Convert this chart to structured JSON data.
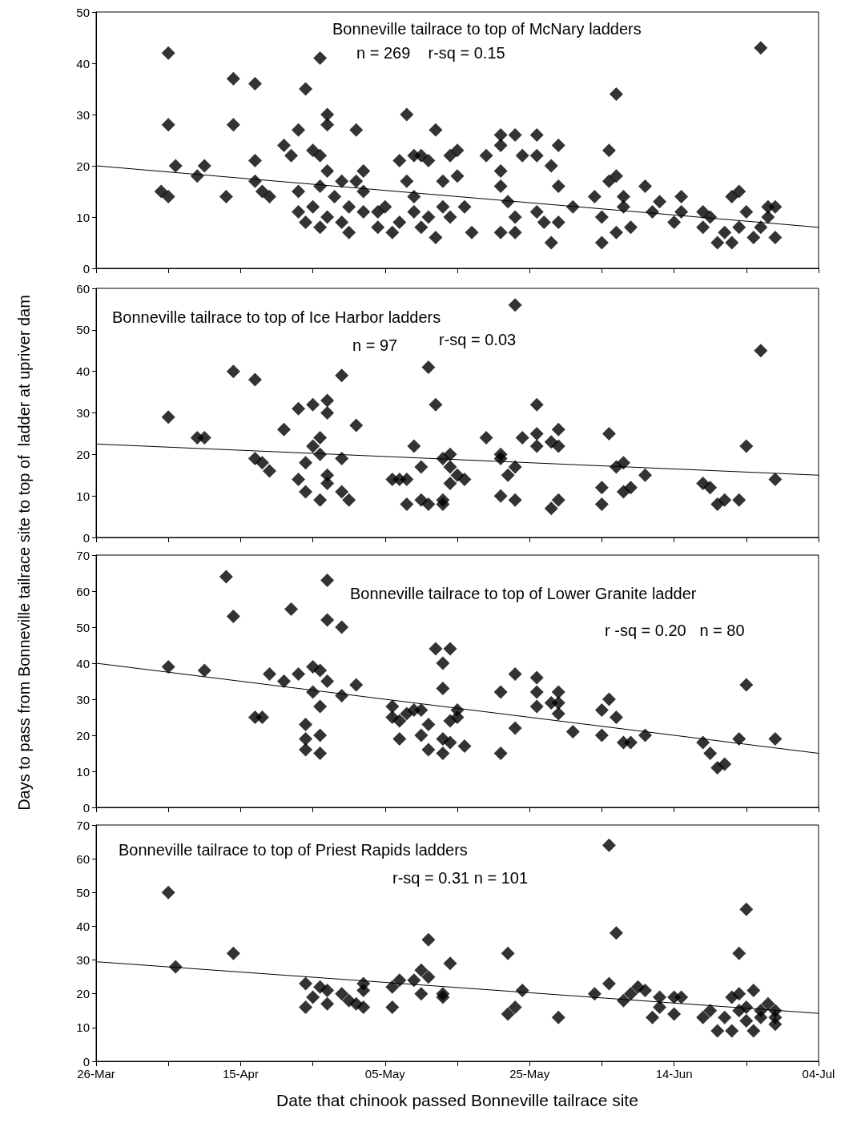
{
  "chart_data": [
    {
      "type": "scatter",
      "title": "Bonneville tailrace to top of McNary ladders",
      "ylabel": "Days to pass from Bonneville tailrace site to top of  ladder at upriver dam",
      "annotations": [
        "n = 269    r-sq = 0.15"
      ],
      "marker": "diamond",
      "tick_labels": "y",
      "xlim": [
        "--03-26",
        "--07-04"
      ],
      "ylim": [
        0,
        50
      ],
      "yticks": [
        0,
        10,
        20,
        30,
        40,
        50
      ],
      "xticks": [
        {
          "value": "--03-26",
          "label": "26-Mar"
        },
        {
          "value": "--04-05",
          "label": null
        },
        {
          "value": "--04-15",
          "label": "15-Apr"
        },
        {
          "value": "--04-25",
          "label": null
        },
        {
          "value": "--05-05",
          "label": "05-May"
        },
        {
          "value": "--05-15",
          "label": null
        },
        {
          "value": "--05-25",
          "label": "25-May"
        },
        {
          "value": "--06-04",
          "label": null
        },
        {
          "value": "--06-14",
          "label": "14-Jun"
        },
        {
          "value": "--06-24",
          "label": null
        },
        {
          "value": "--07-04",
          "label": "04-Jul"
        }
      ],
      "series": [
        {
          "color": "#000000",
          "x": [
            "--04-05",
            "--04-05",
            "--04-04",
            "--04-05",
            "--04-06",
            "--04-09",
            "--04-10",
            "--04-13",
            "--04-14",
            "--04-14",
            "--04-17",
            "--04-17",
            "--04-17",
            "--04-18",
            "--04-19",
            "--04-21",
            "--04-22",
            "--04-23",
            "--04-24",
            "--04-23",
            "--04-23",
            "--04-24",
            "--04-25",
            "--04-26",
            "--04-26",
            "--04-26",
            "--04-27",
            "--04-27",
            "--04-25",
            "--04-26",
            "--04-27",
            "--04-27",
            "--04-28",
            "--04-29",
            "--04-29",
            "--04-30",
            "--04-30",
            "--05-01",
            "--05-01",
            "--05-02",
            "--05-02",
            "--05-02",
            "--05-07",
            "--05-08",
            "--05-09",
            "--05-10",
            "--05-11",
            "--05-12",
            "--05-04",
            "--05-04",
            "--05-05",
            "--05-06",
            "--05-07",
            "--05-08",
            "--05-09",
            "--05-09",
            "--05-10",
            "--05-11",
            "--05-12",
            "--05-13",
            "--05-13",
            "--05-14",
            "--05-14",
            "--05-15",
            "--05-15",
            "--05-16",
            "--05-17",
            "--05-19",
            "--05-21",
            "--05-21",
            "--05-23",
            "--05-21",
            "--05-21",
            "--05-21",
            "--05-22",
            "--05-23",
            "--05-23",
            "--05-24",
            "--05-26",
            "--05-26",
            "--05-26",
            "--05-27",
            "--05-28",
            "--05-28",
            "--05-29",
            "--05-29",
            "--05-29",
            "--05-31",
            "--06-03",
            "--06-04",
            "--06-04",
            "--06-05",
            "--06-05",
            "--06-06",
            "--06-06",
            "--06-06",
            "--06-07",
            "--06-07",
            "--06-08",
            "--06-10",
            "--06-11",
            "--06-12",
            "--06-14",
            "--06-15",
            "--06-15",
            "--06-18",
            "--06-18",
            "--06-20",
            "--06-19",
            "--06-21",
            "--06-22",
            "--06-22",
            "--06-23",
            "--06-23",
            "--06-24",
            "--06-25",
            "--06-26",
            "--06-26",
            "--06-27",
            "--06-27",
            "--06-28",
            "--06-28"
          ],
          "values": [
            42,
            28,
            15,
            14,
            20,
            18,
            20,
            14,
            37,
            28,
            36,
            21,
            17,
            15,
            14,
            24,
            22,
            27,
            35,
            15,
            11,
            9,
            23,
            22,
            41,
            8,
            30,
            28,
            12,
            16,
            19,
            10,
            14,
            17,
            9,
            12,
            7,
            27,
            17,
            19,
            11,
            15,
            21,
            30,
            22,
            22,
            21,
            27,
            11,
            8,
            12,
            7,
            9,
            17,
            11,
            14,
            8,
            10,
            6,
            12,
            17,
            22,
            10,
            18,
            23,
            12,
            7,
            22,
            24,
            26,
            26,
            19,
            16,
            7,
            13,
            7,
            10,
            22,
            26,
            22,
            11,
            9,
            20,
            5,
            24,
            16,
            9,
            12,
            14,
            5,
            10,
            23,
            17,
            34,
            18,
            7,
            14,
            12,
            8,
            16,
            11,
            13,
            9,
            14,
            11,
            11,
            8,
            5,
            10,
            7,
            5,
            14,
            15,
            8,
            11,
            6,
            43,
            8,
            10,
            12,
            6,
            12
          ]
        },
        {
          "type": "line",
          "marker": "none",
          "color": "#000000",
          "x": [
            "--03-26",
            "--07-04"
          ],
          "values": [
            20,
            8
          ]
        }
      ]
    },
    {
      "type": "scatter",
      "title": "Bonneville tailrace to top of Ice Harbor ladders",
      "annotations": [
        "n = 97",
        "r-sq = 0.03"
      ],
      "marker": "diamond",
      "tick_labels": "y",
      "xlim": [
        "--03-26",
        "--07-04"
      ],
      "ylim": [
        0,
        60
      ],
      "yticks": [
        0,
        10,
        20,
        30,
        40,
        50,
        60
      ],
      "xticks": [
        {
          "value": "--03-26",
          "label": "26-Mar"
        },
        {
          "value": "--04-05",
          "label": null
        },
        {
          "value": "--04-15",
          "label": "15-Apr"
        },
        {
          "value": "--04-25",
          "label": null
        },
        {
          "value": "--05-05",
          "label": "05-May"
        },
        {
          "value": "--05-15",
          "label": null
        },
        {
          "value": "--05-25",
          "label": "25-May"
        },
        {
          "value": "--06-04",
          "label": null
        },
        {
          "value": "--06-14",
          "label": "14-Jun"
        },
        {
          "value": "--06-24",
          "label": null
        },
        {
          "value": "--07-04",
          "label": "04-Jul"
        }
      ],
      "series": [
        {
          "color": "#000000",
          "x": [
            "--04-05",
            "--04-09",
            "--04-10",
            "--04-14",
            "--04-17",
            "--04-17",
            "--04-18",
            "--04-19",
            "--04-21",
            "--04-23",
            "--04-23",
            "--04-24",
            "--04-24",
            "--04-25",
            "--04-25",
            "--04-26",
            "--04-26",
            "--04-27",
            "--04-27",
            "--04-26",
            "--04-27",
            "--04-27",
            "--04-29",
            "--04-29",
            "--04-29",
            "--04-30",
            "--05-01",
            "--05-06",
            "--05-07",
            "--05-08",
            "--05-08",
            "--05-09",
            "--05-10",
            "--05-10",
            "--05-11",
            "--05-11",
            "--05-12",
            "--05-13",
            "--05-13",
            "--05-13",
            "--05-14",
            "--05-14",
            "--05-14",
            "--05-15",
            "--05-16",
            "--05-19",
            "--05-21",
            "--05-21",
            "--05-21",
            "--05-22",
            "--05-23",
            "--05-23",
            "--05-23",
            "--05-24",
            "--05-26",
            "--05-26",
            "--05-26",
            "--05-28",
            "--05-28",
            "--05-29",
            "--05-29",
            "--05-29",
            "--06-04",
            "--06-04",
            "--06-05",
            "--06-06",
            "--06-07",
            "--06-07",
            "--06-08",
            "--06-10",
            "--06-18",
            "--06-19",
            "--06-20",
            "--06-21",
            "--06-23",
            "--06-24",
            "--06-26",
            "--06-28"
          ],
          "values": [
            29,
            24,
            24,
            40,
            38,
            19,
            18,
            16,
            26,
            31,
            14,
            11,
            18,
            32,
            22,
            24,
            9,
            33,
            30,
            20,
            15,
            13,
            39,
            19,
            11,
            9,
            27,
            14,
            14,
            14,
            8,
            22,
            17,
            9,
            8,
            41,
            32,
            19,
            9,
            8,
            13,
            20,
            17,
            15,
            14,
            24,
            20,
            19,
            10,
            15,
            56,
            17,
            9,
            24,
            32,
            25,
            22,
            23,
            7,
            26,
            22,
            9,
            8,
            12,
            25,
            17,
            18,
            11,
            12,
            15,
            13,
            12,
            8,
            9,
            9,
            22,
            45,
            14
          ]
        },
        {
          "type": "line",
          "marker": "none",
          "color": "#000000",
          "x": [
            "--03-26",
            "--07-04"
          ],
          "values": [
            22.5,
            15
          ]
        }
      ]
    },
    {
      "type": "scatter",
      "title": "Bonneville tailrace to top of Lower Granite ladder",
      "annotations": [
        "r -sq = 0.20   n = 80"
      ],
      "marker": "diamond",
      "tick_labels": "y",
      "xlim": [
        "--03-26",
        "--07-04"
      ],
      "ylim": [
        0,
        70
      ],
      "yticks": [
        0,
        10,
        20,
        30,
        40,
        50,
        60,
        70
      ],
      "xticks": [
        {
          "value": "--03-26",
          "label": "26-Mar"
        },
        {
          "value": "--04-05",
          "label": null
        },
        {
          "value": "--04-15",
          "label": "15-Apr"
        },
        {
          "value": "--04-25",
          "label": null
        },
        {
          "value": "--05-05",
          "label": "05-May"
        },
        {
          "value": "--05-15",
          "label": null
        },
        {
          "value": "--05-25",
          "label": "25-May"
        },
        {
          "value": "--06-04",
          "label": null
        },
        {
          "value": "--06-14",
          "label": "14-Jun"
        },
        {
          "value": "--06-24",
          "label": null
        },
        {
          "value": "--07-04",
          "label": "04-Jul"
        }
      ],
      "series": [
        {
          "color": "#000000",
          "x": [
            "--04-05",
            "--04-10",
            "--04-13",
            "--04-14",
            "--04-17",
            "--04-18",
            "--04-19",
            "--04-21",
            "--04-22",
            "--04-23",
            "--04-24",
            "--04-24",
            "--04-24",
            "--04-25",
            "--04-25",
            "--04-26",
            "--04-26",
            "--04-26",
            "--04-26",
            "--04-27",
            "--04-27",
            "--04-27",
            "--04-29",
            "--04-29",
            "--05-01",
            "--05-06",
            "--05-06",
            "--05-07",
            "--05-07",
            "--05-08",
            "--05-09",
            "--05-10",
            "--05-10",
            "--05-11",
            "--05-11",
            "--05-12",
            "--05-13",
            "--05-13",
            "--05-13",
            "--05-13",
            "--05-14",
            "--05-14",
            "--05-14",
            "--05-15",
            "--05-15",
            "--05-16",
            "--05-21",
            "--05-21",
            "--05-23",
            "--05-23",
            "--05-26",
            "--05-26",
            "--05-26",
            "--05-28",
            "--05-29",
            "--05-29",
            "--05-29",
            "--05-31",
            "--06-04",
            "--06-04",
            "--06-05",
            "--06-06",
            "--06-07",
            "--06-08",
            "--06-10",
            "--06-18",
            "--06-19",
            "--06-20",
            "--06-21",
            "--06-23",
            "--06-24",
            "--06-28"
          ],
          "values": [
            39,
            38,
            64,
            53,
            25,
            25,
            37,
            35,
            55,
            37,
            23,
            19,
            16,
            39,
            32,
            38,
            28,
            20,
            15,
            63,
            52,
            35,
            50,
            31,
            34,
            28,
            25,
            19,
            24,
            26,
            27,
            27,
            20,
            23,
            16,
            44,
            40,
            33,
            19,
            15,
            18,
            44,
            24,
            27,
            25,
            17,
            32,
            15,
            22,
            37,
            36,
            32,
            28,
            29,
            32,
            29,
            26,
            21,
            20,
            27,
            30,
            25,
            18,
            18,
            20,
            18,
            15,
            11,
            12,
            19,
            34,
            19
          ]
        },
        {
          "type": "line",
          "marker": "none",
          "color": "#000000",
          "x": [
            "--03-26",
            "--07-04"
          ],
          "values": [
            40,
            15
          ]
        }
      ]
    },
    {
      "type": "scatter",
      "title": "Bonneville tailrace to top of Priest Rapids ladders",
      "xlabel": "Date that chinook passed Bonneville tailrace site",
      "annotations": [
        "r-sq = 0.31 n = 101"
      ],
      "marker": "diamond",
      "xlim": [
        "--03-26",
        "--07-04"
      ],
      "ylim": [
        0,
        70
      ],
      "yticks": [
        0,
        10,
        20,
        30,
        40,
        50,
        60,
        70
      ],
      "xticks": [
        {
          "value": "--03-26",
          "label": "26-Mar"
        },
        {
          "value": "--04-05",
          "label": null
        },
        {
          "value": "--04-15",
          "label": "15-Apr"
        },
        {
          "value": "--04-25",
          "label": null
        },
        {
          "value": "--05-05",
          "label": "05-May"
        },
        {
          "value": "--05-15",
          "label": null
        },
        {
          "value": "--05-25",
          "label": "25-May"
        },
        {
          "value": "--06-04",
          "label": null
        },
        {
          "value": "--06-14",
          "label": "14-Jun"
        },
        {
          "value": "--06-24",
          "label": null
        },
        {
          "value": "--07-04",
          "label": "04-Jul"
        }
      ],
      "series": [
        {
          "color": "#000000",
          "x": [
            "--04-05",
            "--04-06",
            "--04-14",
            "--04-24",
            "--04-24",
            "--04-25",
            "--04-26",
            "--04-27",
            "--04-27",
            "--04-29",
            "--04-30",
            "--05-01",
            "--05-02",
            "--05-02",
            "--05-02",
            "--05-06",
            "--05-06",
            "--05-07",
            "--05-09",
            "--05-10",
            "--05-10",
            "--05-11",
            "--05-11",
            "--05-13",
            "--05-13",
            "--05-14",
            "--05-22",
            "--05-22",
            "--05-23",
            "--05-24",
            "--05-29",
            "--06-03",
            "--06-05",
            "--06-05",
            "--06-06",
            "--06-07",
            "--06-08",
            "--06-09",
            "--06-10",
            "--06-11",
            "--06-12",
            "--06-12",
            "--06-14",
            "--06-14",
            "--06-15",
            "--06-18",
            "--06-19",
            "--06-20",
            "--06-21",
            "--06-22",
            "--06-22",
            "--06-23",
            "--06-23",
            "--06-23",
            "--06-24",
            "--06-24",
            "--06-24",
            "--06-25",
            "--06-25",
            "--06-26",
            "--06-26",
            "--06-27",
            "--06-28",
            "--06-28",
            "--06-28"
          ],
          "values": [
            50,
            28,
            32,
            23,
            16,
            19,
            22,
            17,
            21,
            20,
            18,
            17,
            23,
            21,
            16,
            16,
            22,
            24,
            24,
            27,
            20,
            36,
            25,
            19,
            20,
            29,
            32,
            14,
            16,
            21,
            13,
            20,
            64,
            23,
            38,
            18,
            20,
            22,
            21,
            13,
            19,
            16,
            19,
            14,
            19,
            13,
            15,
            9,
            13,
            9,
            19,
            32,
            20,
            15,
            12,
            45,
            16,
            9,
            21,
            13,
            15,
            17,
            13,
            11,
            15
          ]
        },
        {
          "type": "line",
          "marker": "none",
          "color": "#000000",
          "x": [
            "--03-26",
            "--07-04"
          ],
          "values": [
            29.5,
            14.2
          ]
        }
      ]
    }
  ]
}
